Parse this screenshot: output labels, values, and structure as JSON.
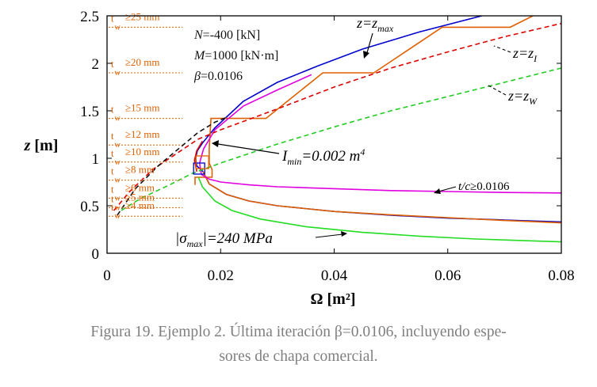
{
  "chart_data": {
    "type": "line",
    "xlabel": "Ω [m²]",
    "ylabel": "z [m]",
    "xlim": [
      0,
      0.08
    ],
    "ylim": [
      0,
      2.5
    ],
    "x_ticks": [
      "0",
      "0.02",
      "0.04",
      "0.06",
      "0.08"
    ],
    "y_ticks": [
      "0",
      "0.5",
      "1",
      "1.5",
      "2",
      "2.5"
    ],
    "grid": false,
    "params": [
      "N=-400 [kN]",
      "M=1000 [kN·m]",
      "β=0.0106"
    ],
    "curve_labels": {
      "z_max": "z=z_max",
      "z_I": "z=z_I",
      "z_W": "z=z_W",
      "tc": "t/c≥0.0106",
      "imin": "I_min=0.002 m⁴",
      "sigma": "|σ_max|=240 MPa"
    },
    "thickness_levels": [
      {
        "label": "≥25 mm",
        "z": 2.38
      },
      {
        "label": "≥20 mm",
        "z": 1.9
      },
      {
        "label": "≥15 mm",
        "z": 1.42
      },
      {
        "label": "≥12 mm",
        "z": 1.14
      },
      {
        "label": "≥10 mm",
        "z": 0.96
      },
      {
        "label": "≥8 mm",
        "z": 0.77
      },
      {
        "label": "≥6 mm",
        "z": 0.58
      },
      {
        "label": "≥5 mm",
        "z": 0.48
      },
      {
        "label": "≥4 mm",
        "z": 0.39
      }
    ],
    "series": [
      {
        "color": "#0000cc",
        "style": "solid",
        "points": [
          [
            0.0169,
            0.86
          ],
          [
            0.0158,
            0.92
          ],
          [
            0.0156,
            1.0
          ],
          [
            0.0159,
            1.08
          ],
          [
            0.0168,
            1.16
          ],
          [
            0.019,
            1.32
          ],
          [
            0.024,
            1.6
          ],
          [
            0.03,
            1.8
          ],
          [
            0.037,
            1.97
          ],
          [
            0.045,
            2.15
          ],
          [
            0.055,
            2.33
          ],
          [
            0.066,
            2.5
          ]
        ]
      },
      {
        "color": "#0000cc",
        "style": "solid",
        "points": [
          [
            0.0169,
            0.86
          ],
          [
            0.018,
            0.73
          ],
          [
            0.021,
            0.62
          ],
          [
            0.025,
            0.55
          ],
          [
            0.03,
            0.5
          ],
          [
            0.04,
            0.44
          ],
          [
            0.05,
            0.4
          ],
          [
            0.06,
            0.37
          ],
          [
            0.07,
            0.35
          ],
          [
            0.08,
            0.33
          ]
        ]
      },
      {
        "color": "#e06000",
        "style": "solid",
        "points": [
          [
            0.0155,
            0.72
          ],
          [
            0.0155,
            0.8
          ],
          [
            0.0185,
            0.8
          ],
          [
            0.0185,
            0.88
          ],
          [
            0.018,
            0.95
          ],
          [
            0.018,
            1.1
          ],
          [
            0.0183,
            1.42
          ],
          [
            0.028,
            1.42
          ],
          [
            0.038,
            1.9
          ],
          [
            0.047,
            1.9
          ],
          [
            0.059,
            2.38
          ],
          [
            0.071,
            2.38
          ],
          [
            0.075,
            2.5
          ]
        ]
      },
      {
        "color": "#e06000",
        "style": "solid",
        "points": [
          [
            0.0169,
            0.86
          ],
          [
            0.018,
            0.73
          ],
          [
            0.021,
            0.62
          ],
          [
            0.025,
            0.55
          ],
          [
            0.03,
            0.5
          ],
          [
            0.04,
            0.44
          ],
          [
            0.05,
            0.405
          ],
          [
            0.06,
            0.375
          ],
          [
            0.07,
            0.345
          ],
          [
            0.08,
            0.32
          ]
        ]
      },
      {
        "color": "#e000e0",
        "style": "solid",
        "points": [
          [
            0.0166,
            0.83
          ],
          [
            0.018,
            0.78
          ],
          [
            0.02,
            0.75
          ],
          [
            0.025,
            0.72
          ],
          [
            0.03,
            0.7
          ],
          [
            0.04,
            0.68
          ],
          [
            0.05,
            0.66
          ],
          [
            0.06,
            0.65
          ],
          [
            0.07,
            0.64
          ],
          [
            0.08,
            0.635
          ]
        ]
      },
      {
        "color": "#e000e0",
        "style": "solid",
        "points": [
          [
            0.0166,
            0.83
          ],
          [
            0.0163,
            0.95
          ],
          [
            0.017,
            1.1
          ],
          [
            0.019,
            1.3
          ],
          [
            0.024,
            1.55
          ],
          [
            0.03,
            1.72
          ],
          [
            0.036,
            1.88
          ]
        ]
      },
      {
        "color": "#22dd22",
        "style": "solid",
        "points": [
          [
            0.0161,
            0.8
          ],
          [
            0.0168,
            0.7
          ],
          [
            0.019,
            0.55
          ],
          [
            0.022,
            0.45
          ],
          [
            0.027,
            0.36
          ],
          [
            0.035,
            0.28
          ],
          [
            0.045,
            0.22
          ],
          [
            0.055,
            0.18
          ],
          [
            0.065,
            0.15
          ],
          [
            0.08,
            0.12
          ]
        ]
      },
      {
        "color": "#dd0000",
        "style": "dash",
        "points": [
          [
            0.0012,
            0.45
          ],
          [
            0.004,
            0.65
          ],
          [
            0.008,
            0.88
          ],
          [
            0.013,
            1.08
          ],
          [
            0.016,
            1.2
          ],
          [
            0.02,
            1.3
          ],
          [
            0.03,
            1.52
          ],
          [
            0.04,
            1.75
          ],
          [
            0.05,
            1.95
          ],
          [
            0.06,
            2.12
          ],
          [
            0.07,
            2.28
          ],
          [
            0.08,
            2.42
          ]
        ]
      },
      {
        "color": "#22cc22",
        "style": "dash",
        "points": [
          [
            0.0025,
            0.45
          ],
          [
            0.006,
            0.58
          ],
          [
            0.011,
            0.72
          ],
          [
            0.015,
            0.84
          ],
          [
            0.02,
            0.95
          ],
          [
            0.03,
            1.15
          ],
          [
            0.04,
            1.33
          ],
          [
            0.05,
            1.5
          ],
          [
            0.06,
            1.65
          ],
          [
            0.07,
            1.8
          ],
          [
            0.08,
            1.95
          ]
        ]
      },
      {
        "color": "#111111",
        "style": "dash",
        "points": [
          [
            0.0018,
            0.4
          ],
          [
            0.005,
            0.68
          ],
          [
            0.009,
            0.92
          ],
          [
            0.013,
            1.12
          ],
          [
            0.016,
            1.27
          ],
          [
            0.019,
            1.38
          ],
          [
            0.021,
            1.43
          ]
        ]
      },
      {
        "color": "#dd0000",
        "style": "solid",
        "points": [
          [
            0.0158,
            0.86
          ],
          [
            0.0154,
            0.98
          ],
          [
            0.0158,
            1.08
          ],
          [
            0.0168,
            1.18
          ]
        ]
      }
    ],
    "tmin_marker": {
      "x": 0.0165,
      "y": 0.9
    }
  },
  "caption": {
    "line1": "Figura 19. Ejemplo 2. Última iteración β=0.0106, incluyendo espe-",
    "line2": "sores de chapa comercial."
  }
}
